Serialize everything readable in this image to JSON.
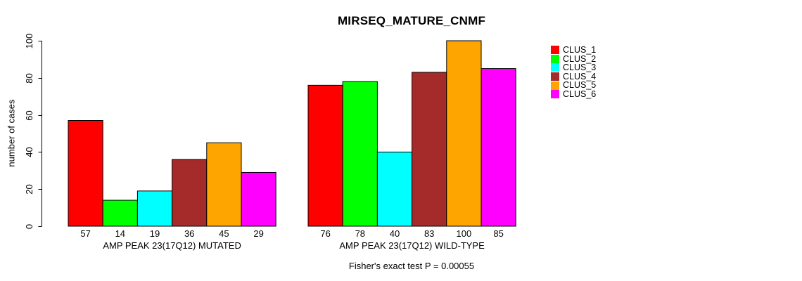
{
  "figure": {
    "title": "MIRSEQ_MATURE_CNMF",
    "ylabel": "number of cases",
    "annotation": "Fisher's exact test P = 0.00055",
    "text_color": "#000000",
    "background_color": "#ffffff"
  },
  "chart_data": {
    "type": "bar",
    "title": "MIRSEQ_MATURE_CNMF",
    "xlabel": "",
    "ylabel": "number of cases",
    "ylim": [
      0,
      100
    ],
    "yticks": [
      0,
      20,
      40,
      60,
      80,
      100
    ],
    "grid": false,
    "legend_position": "right-outside",
    "bar_border_color": "#000000",
    "clusters": [
      {
        "name": "CLUS_1",
        "color": "#FF0000"
      },
      {
        "name": "CLUS_2",
        "color": "#00FF00"
      },
      {
        "name": "CLUS_3",
        "color": "#00FFFF"
      },
      {
        "name": "CLUS_4",
        "color": "#A52A2A"
      },
      {
        "name": "CLUS_5",
        "color": "#FFA500"
      },
      {
        "name": "CLUS_6",
        "color": "#FF00FF"
      }
    ],
    "groups": [
      {
        "label": "AMP PEAK 23(17Q12) MUTATED",
        "values": [
          57,
          14,
          19,
          36,
          45,
          29
        ]
      },
      {
        "label": "AMP PEAK 23(17Q12) WILD-TYPE",
        "values": [
          76,
          78,
          40,
          83,
          100,
          85
        ]
      }
    ],
    "value_labels_shown_under_bars": true,
    "annotation": "Fisher's exact test P = 0.00055"
  }
}
